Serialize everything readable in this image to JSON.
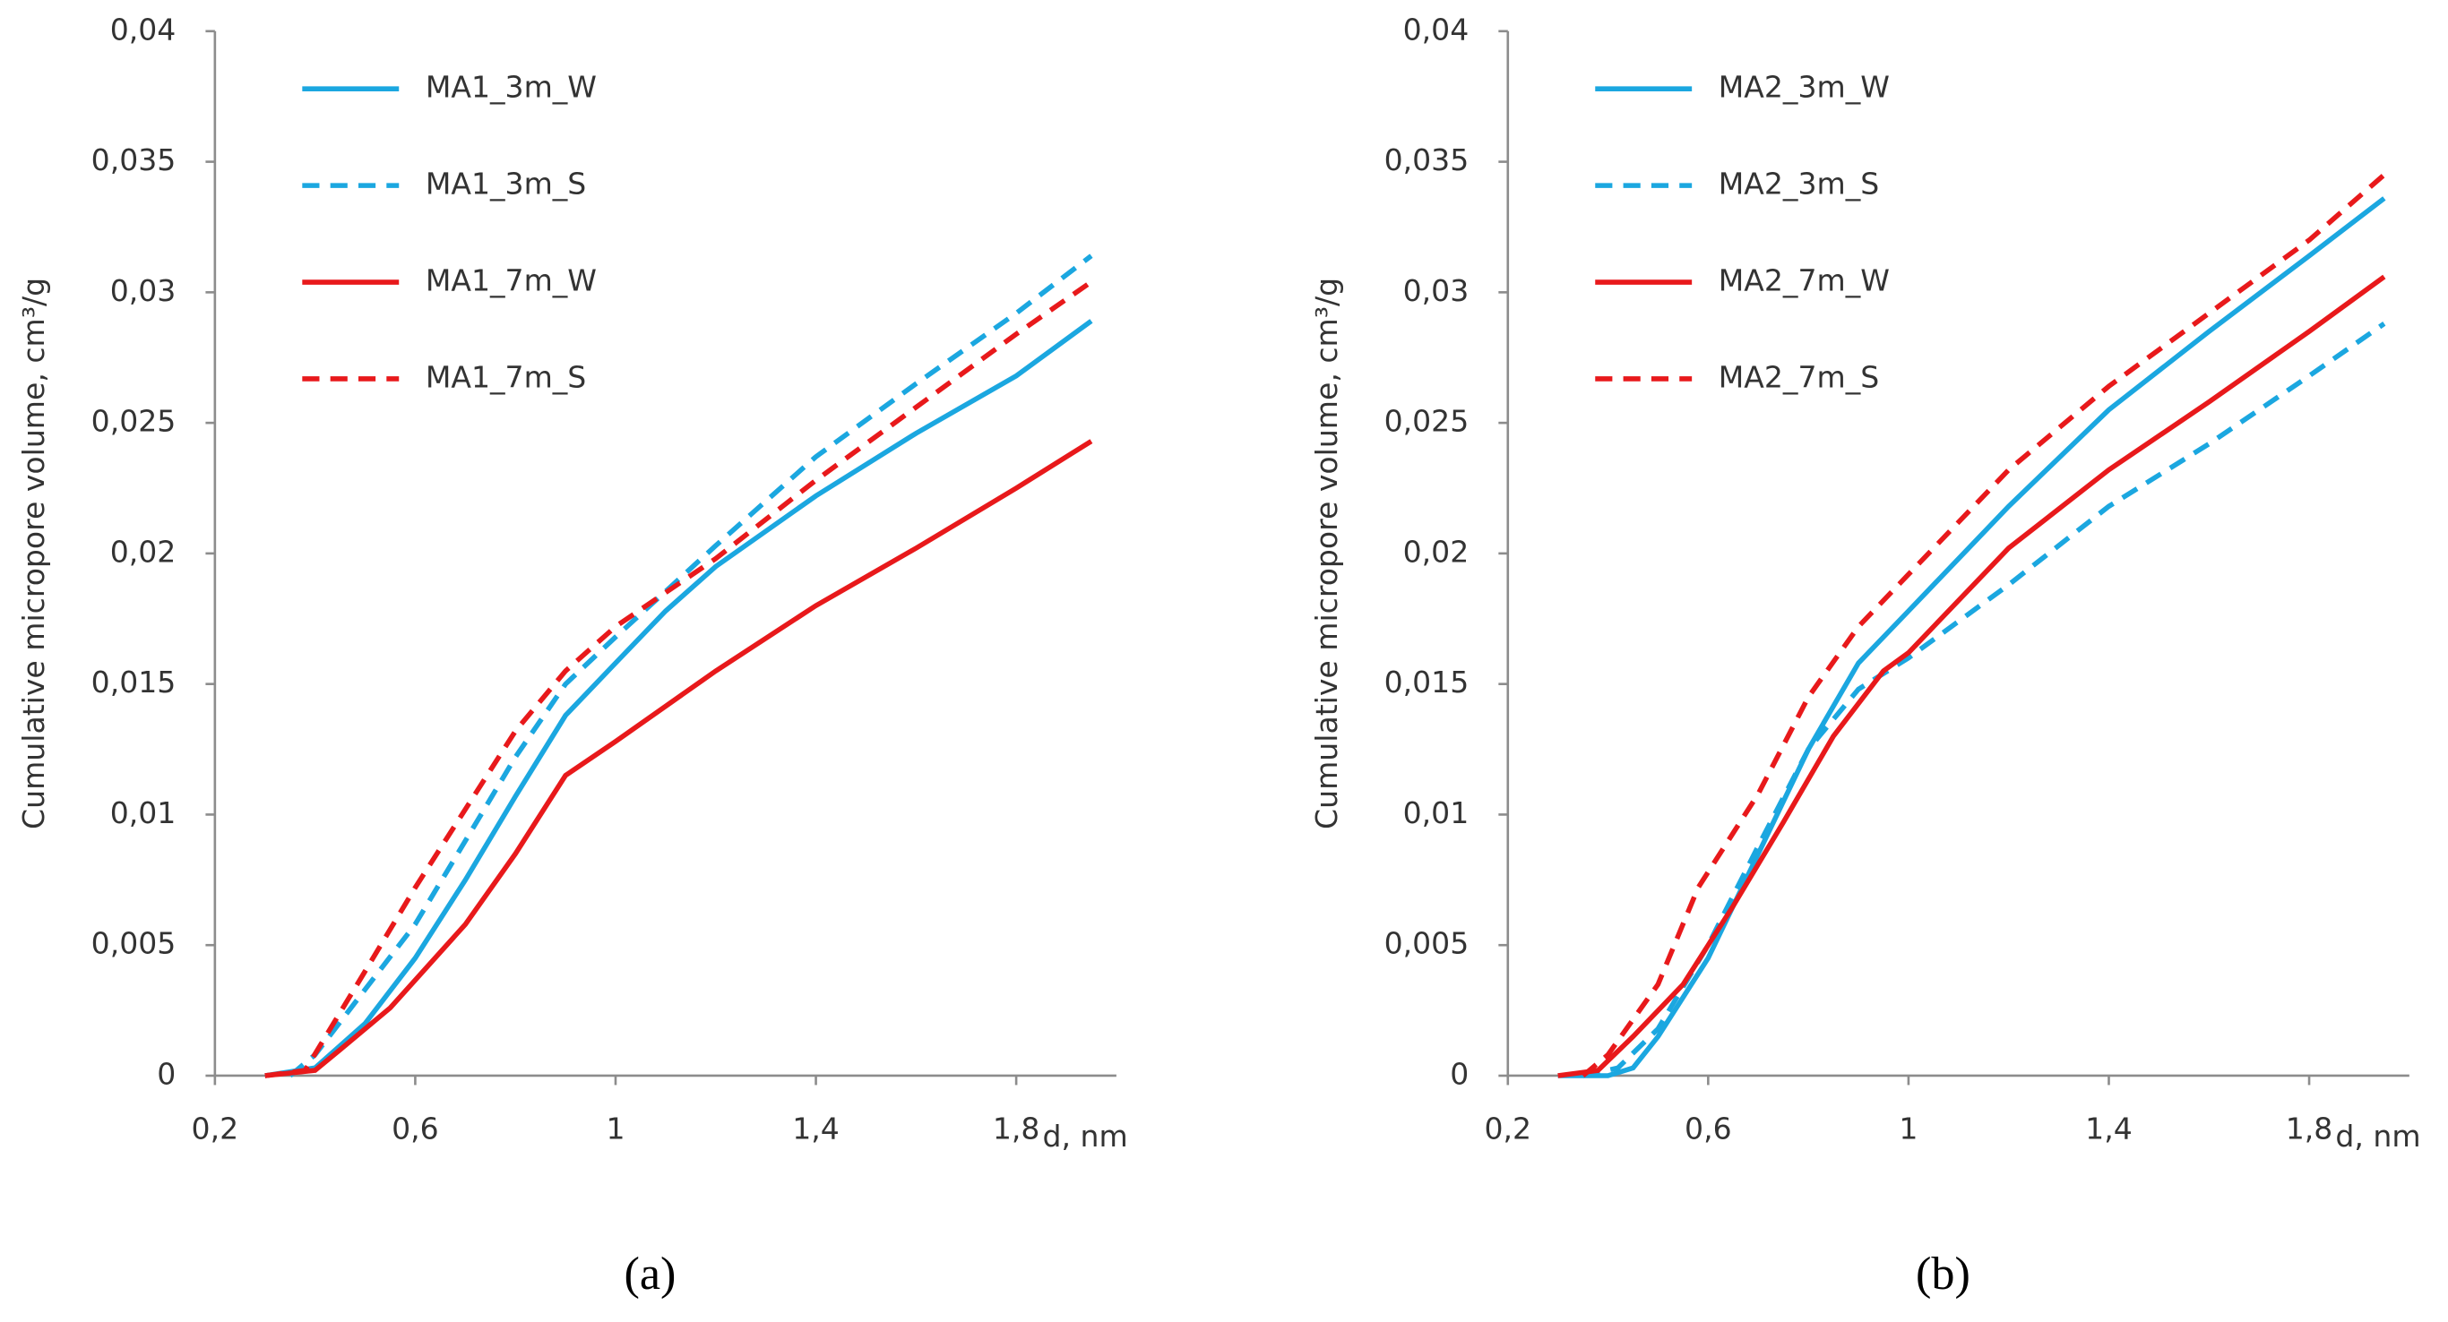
{
  "chart_data": [
    {
      "type": "line",
      "caption": "(a)",
      "ylabel": "Cumulative micropore volume,  cm³/g",
      "xlabel": "d, nm",
      "xlim": [
        0.2,
        2.0
      ],
      "xticks": [
        {
          "value": 0.2,
          "label": "0,2"
        },
        {
          "value": 0.6,
          "label": "0,6"
        },
        1,
        {
          "value": 1.4,
          "label": "1,4"
        },
        {
          "value": 1.8,
          "label": "1,8"
        }
      ],
      "ylim": [
        0,
        0.04
      ],
      "yticks": [
        0,
        {
          "value": 0.005,
          "label": "0,005"
        },
        {
          "value": 0.01,
          "label": "0,01"
        },
        {
          "value": 0.015,
          "label": "0,015"
        },
        {
          "value": 0.02,
          "label": "0,02"
        },
        {
          "value": 0.025,
          "label": "0,025"
        },
        {
          "value": 0.03,
          "label": "0,03"
        },
        {
          "value": 0.035,
          "label": "0,035"
        },
        {
          "value": 0.04,
          "label": "0,04"
        }
      ],
      "series": [
        {
          "name": "MA1_3m_W",
          "color": "#1ba7e0",
          "dashed": false,
          "x": [
            0.3,
            0.4,
            0.5,
            0.6,
            0.7,
            0.8,
            0.9,
            1.0,
            1.1,
            1.2,
            1.4,
            1.6,
            1.8,
            1.95
          ],
          "values": [
            0,
            0.0003,
            0.002,
            0.0045,
            0.0075,
            0.0107,
            0.0138,
            0.0158,
            0.0178,
            0.0195,
            0.0222,
            0.0246,
            0.0268,
            0.0289
          ]
        },
        {
          "name": "MA1_3m_S",
          "color": "#1ba7e0",
          "dashed": true,
          "x": [
            0.35,
            0.4,
            0.5,
            0.6,
            0.7,
            0.8,
            0.9,
            1.0,
            1.2,
            1.4,
            1.6,
            1.8,
            1.95
          ],
          "values": [
            0,
            0.0008,
            0.0033,
            0.0058,
            0.009,
            0.0122,
            0.015,
            0.0168,
            0.0203,
            0.0237,
            0.0265,
            0.0292,
            0.0314
          ]
        },
        {
          "name": "MA1_7m_W",
          "color": "#e8191b",
          "dashed": false,
          "x": [
            0.3,
            0.4,
            0.45,
            0.55,
            0.7,
            0.8,
            0.9,
            1.0,
            1.2,
            1.4,
            1.6,
            1.8,
            1.95
          ],
          "values": [
            0,
            0.0002,
            0.001,
            0.0026,
            0.0058,
            0.0085,
            0.0115,
            0.0128,
            0.0155,
            0.018,
            0.0202,
            0.0225,
            0.0243
          ]
        },
        {
          "name": "MA1_7m_S",
          "color": "#e8191b",
          "dashed": true,
          "x": [
            0.3,
            0.38,
            0.5,
            0.6,
            0.7,
            0.8,
            0.9,
            1.0,
            1.2,
            1.4,
            1.6,
            1.8,
            1.95
          ],
          "values": [
            0,
            0.0002,
            0.004,
            0.0072,
            0.0102,
            0.0132,
            0.0155,
            0.0172,
            0.0198,
            0.0228,
            0.0256,
            0.0284,
            0.0304
          ]
        }
      ]
    },
    {
      "type": "line",
      "caption": "(b)",
      "ylabel": "Cumulative micropore volume,  cm³/g",
      "xlabel": "d, nm",
      "xlim": [
        0.2,
        2.0
      ],
      "xticks": [
        {
          "value": 0.2,
          "label": "0,2"
        },
        {
          "value": 0.6,
          "label": "0,6"
        },
        1,
        {
          "value": 1.4,
          "label": "1,4"
        },
        {
          "value": 1.8,
          "label": "1,8"
        }
      ],
      "ylim": [
        0,
        0.04
      ],
      "yticks": [
        0,
        {
          "value": 0.005,
          "label": "0,005"
        },
        {
          "value": 0.01,
          "label": "0,01"
        },
        {
          "value": 0.015,
          "label": "0,015"
        },
        {
          "value": 0.02,
          "label": "0,02"
        },
        {
          "value": 0.025,
          "label": "0,025"
        },
        {
          "value": 0.03,
          "label": "0,03"
        },
        {
          "value": 0.035,
          "label": "0,035"
        },
        {
          "value": 0.04,
          "label": "0,04"
        }
      ],
      "series": [
        {
          "name": "MA2_3m_W",
          "color": "#1ba7e0",
          "dashed": false,
          "x": [
            0.3,
            0.4,
            0.45,
            0.5,
            0.6,
            0.7,
            0.8,
            0.9,
            1.0,
            1.2,
            1.4,
            1.6,
            1.8,
            1.95
          ],
          "values": [
            0,
            0,
            0.0003,
            0.0015,
            0.0045,
            0.0085,
            0.0125,
            0.0158,
            0.0178,
            0.0218,
            0.0255,
            0.0285,
            0.0314,
            0.0336
          ]
        },
        {
          "name": "MA2_3m_S",
          "color": "#1ba7e0",
          "dashed": true,
          "x": [
            0.35,
            0.42,
            0.5,
            0.6,
            0.7,
            0.8,
            0.9,
            1.0,
            1.2,
            1.4,
            1.6,
            1.8,
            1.95
          ],
          "values": [
            0,
            0.0003,
            0.0018,
            0.005,
            0.0088,
            0.0125,
            0.0148,
            0.016,
            0.0188,
            0.0218,
            0.0242,
            0.0268,
            0.0288
          ]
        },
        {
          "name": "MA2_7m_W",
          "color": "#e8191b",
          "dashed": false,
          "x": [
            0.3,
            0.38,
            0.45,
            0.55,
            0.65,
            0.75,
            0.85,
            0.95,
            1.0,
            1.2,
            1.4,
            1.6,
            1.8,
            1.95
          ],
          "values": [
            0,
            0.0002,
            0.0015,
            0.0035,
            0.0065,
            0.0097,
            0.013,
            0.0155,
            0.0162,
            0.0202,
            0.0232,
            0.0258,
            0.0285,
            0.0306
          ]
        },
        {
          "name": "MA2_7m_S",
          "color": "#e8191b",
          "dashed": true,
          "x": [
            0.35,
            0.4,
            0.5,
            0.58,
            0.7,
            0.8,
            0.9,
            1.0,
            1.2,
            1.4,
            1.6,
            1.8,
            1.95
          ],
          "values": [
            0,
            0.0008,
            0.0035,
            0.0072,
            0.0108,
            0.0145,
            0.0172,
            0.0192,
            0.0232,
            0.0264,
            0.0292,
            0.032,
            0.0345
          ]
        }
      ]
    }
  ]
}
